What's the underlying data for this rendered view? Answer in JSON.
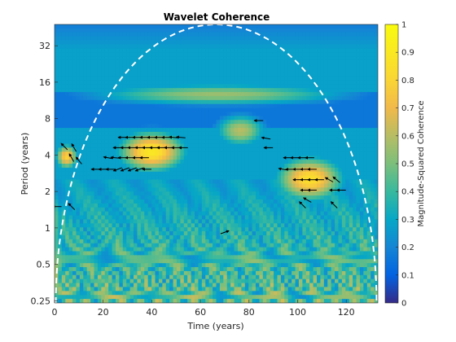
{
  "chart_data": {
    "type": "heatmap",
    "title": "Wavelet Coherence",
    "xlabel": "Time (years)",
    "ylabel": "Period (years)",
    "xlim": [
      0,
      133
    ],
    "ylim": [
      0.24,
      48
    ],
    "y_scale": "log2",
    "x_ticks": [
      0,
      20,
      40,
      60,
      80,
      100,
      120
    ],
    "x_tick_labels": [
      "0",
      "20",
      "40",
      "60",
      "80",
      "100",
      "120"
    ],
    "y_ticks": [
      0.25,
      0.5,
      1,
      2,
      4,
      8,
      16,
      32
    ],
    "y_tick_labels": [
      "0.25",
      "0.5",
      "1",
      "2",
      "4",
      "8",
      "16",
      "32"
    ],
    "colorbar": {
      "label": "Magnitude-Squared Coherence",
      "range": [
        0,
        1
      ],
      "ticks": [
        0,
        0.1,
        0.2,
        0.3,
        0.4,
        0.5,
        0.6,
        0.7,
        0.8,
        0.9,
        1
      ],
      "tick_labels": [
        "0",
        "0.1",
        "0.2",
        "0.3",
        "0.4",
        "0.5",
        "0.6",
        "0.7",
        "0.8",
        "0.9",
        "1"
      ],
      "colormap": "parula"
    },
    "cone_of_influence": {
      "style": "dashed",
      "color": "#ffffff"
    },
    "high_coherence_regions": [
      {
        "t": [
          25,
          55
        ],
        "period": [
          2.8,
          6.5
        ],
        "level": 0.9
      },
      {
        "t": [
          90,
          120
        ],
        "period": [
          1.6,
          4.0
        ],
        "level": 0.85
      },
      {
        "t": [
          0,
          10
        ],
        "period": [
          3.0,
          5.0
        ],
        "level": 0.8
      },
      {
        "t": [
          65,
          88
        ],
        "period": [
          4.5,
          9.0
        ],
        "level": 0.6
      },
      {
        "t": [
          5,
          130
        ],
        "period": [
          10,
          16
        ],
        "level": 0.55
      }
    ],
    "phase_arrows": [
      {
        "t": 28,
        "period": 5.6,
        "angle": 180
      },
      {
        "t": 31,
        "period": 5.6,
        "angle": 180
      },
      {
        "t": 34,
        "period": 5.6,
        "angle": 180
      },
      {
        "t": 37,
        "period": 5.6,
        "angle": 180
      },
      {
        "t": 40,
        "period": 5.6,
        "angle": 180
      },
      {
        "t": 43,
        "period": 5.6,
        "angle": 180
      },
      {
        "t": 46,
        "period": 5.6,
        "angle": 180
      },
      {
        "t": 49,
        "period": 5.6,
        "angle": 175
      },
      {
        "t": 52,
        "period": 5.6,
        "angle": 175
      },
      {
        "t": 26,
        "period": 4.6,
        "angle": 180
      },
      {
        "t": 29,
        "period": 4.6,
        "angle": 180
      },
      {
        "t": 32,
        "period": 4.6,
        "angle": 180
      },
      {
        "t": 35,
        "period": 4.6,
        "angle": 180
      },
      {
        "t": 38,
        "period": 4.6,
        "angle": 180
      },
      {
        "t": 41,
        "period": 4.6,
        "angle": 180
      },
      {
        "t": 44,
        "period": 4.6,
        "angle": 180
      },
      {
        "t": 47,
        "period": 4.6,
        "angle": 180
      },
      {
        "t": 50,
        "period": 4.6,
        "angle": 180
      },
      {
        "t": 53,
        "period": 4.6,
        "angle": 180
      },
      {
        "t": 22,
        "period": 3.8,
        "angle": 170
      },
      {
        "t": 25,
        "period": 3.8,
        "angle": 175
      },
      {
        "t": 28,
        "period": 3.8,
        "angle": 180
      },
      {
        "t": 31,
        "period": 3.8,
        "angle": 180
      },
      {
        "t": 34,
        "period": 3.8,
        "angle": 180
      },
      {
        "t": 37,
        "period": 3.8,
        "angle": 180
      },
      {
        "t": 17,
        "period": 3.05,
        "angle": 180
      },
      {
        "t": 20,
        "period": 3.05,
        "angle": 180
      },
      {
        "t": 23,
        "period": 3.05,
        "angle": 180
      },
      {
        "t": 26,
        "period": 3.05,
        "angle": 200
      },
      {
        "t": 29,
        "period": 3.05,
        "angle": 200
      },
      {
        "t": 32,
        "period": 3.05,
        "angle": 200
      },
      {
        "t": 35,
        "period": 3.05,
        "angle": 200
      },
      {
        "t": 38,
        "period": 3.05,
        "angle": 180
      },
      {
        "t": 4,
        "period": 4.7,
        "angle": 135
      },
      {
        "t": 8,
        "period": 4.6,
        "angle": 120
      },
      {
        "t": 7,
        "period": 3.8,
        "angle": 120
      },
      {
        "t": 10,
        "period": 3.6,
        "angle": 130
      },
      {
        "t": 1,
        "period": 1.5,
        "angle": 180
      },
      {
        "t": 7,
        "period": 1.5,
        "angle": 135
      },
      {
        "t": 84,
        "period": 7.7,
        "angle": 180
      },
      {
        "t": 87,
        "period": 5.5,
        "angle": 170
      },
      {
        "t": 88,
        "period": 4.6,
        "angle": 180
      },
      {
        "t": 96,
        "period": 3.8,
        "angle": 180
      },
      {
        "t": 99,
        "period": 3.8,
        "angle": 180
      },
      {
        "t": 102,
        "period": 3.8,
        "angle": 180
      },
      {
        "t": 105,
        "period": 3.8,
        "angle": 180
      },
      {
        "t": 94,
        "period": 3.05,
        "angle": 170
      },
      {
        "t": 97,
        "period": 3.05,
        "angle": 180
      },
      {
        "t": 100,
        "period": 3.05,
        "angle": 180
      },
      {
        "t": 103,
        "period": 3.05,
        "angle": 180
      },
      {
        "t": 106,
        "period": 3.05,
        "angle": 180
      },
      {
        "t": 100,
        "period": 2.5,
        "angle": 180
      },
      {
        "t": 103,
        "period": 2.5,
        "angle": 180
      },
      {
        "t": 106,
        "period": 2.5,
        "angle": 180
      },
      {
        "t": 109,
        "period": 2.5,
        "angle": 180
      },
      {
        "t": 113,
        "period": 2.5,
        "angle": 150
      },
      {
        "t": 116,
        "period": 2.5,
        "angle": 140
      },
      {
        "t": 103,
        "period": 2.05,
        "angle": 180
      },
      {
        "t": 106,
        "period": 2.05,
        "angle": 180
      },
      {
        "t": 115,
        "period": 2.05,
        "angle": 180
      },
      {
        "t": 118,
        "period": 2.05,
        "angle": 180
      },
      {
        "t": 104,
        "period": 1.7,
        "angle": 150
      },
      {
        "t": 102,
        "period": 1.55,
        "angle": 135
      },
      {
        "t": 115,
        "period": 1.55,
        "angle": 135
      },
      {
        "t": 70,
        "period": 0.92,
        "angle": 20
      }
    ]
  }
}
